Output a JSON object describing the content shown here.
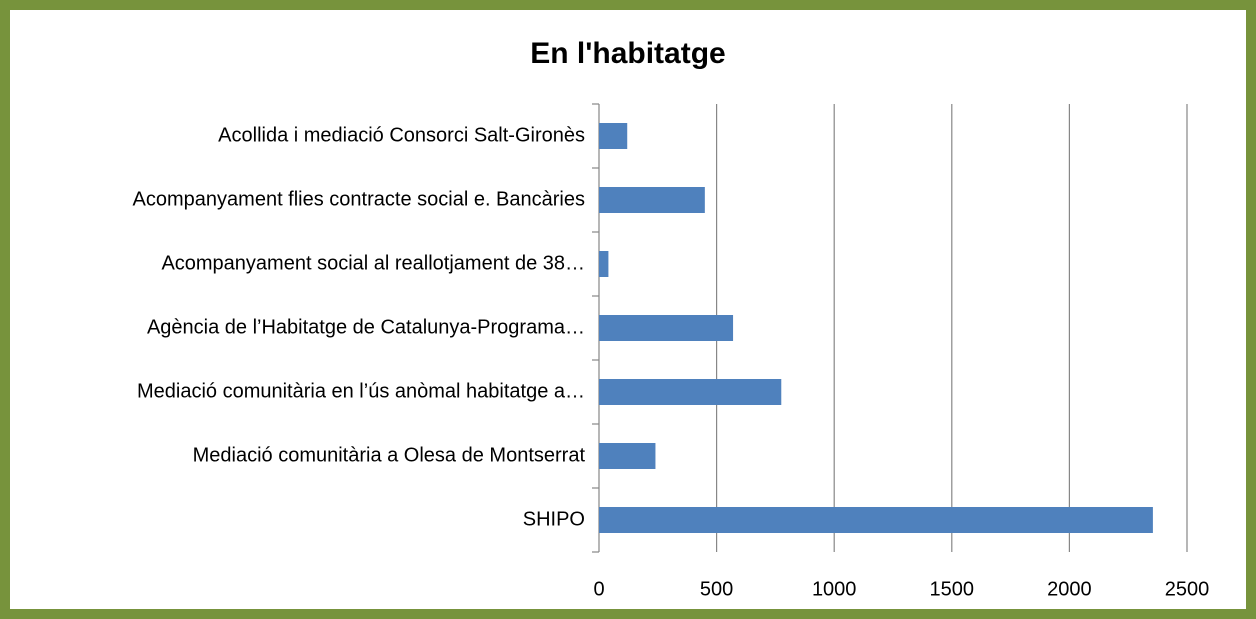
{
  "chart_data": {
    "type": "barh",
    "title": "En l'habitatge",
    "categories": [
      "Acollida i mediació Consorci Salt-Gironès",
      "Acompanyament flies contracte social e. Bancàries",
      "Acompanyament social al reallotjament de 38…",
      "Agència de l’Habitatge de Catalunya-Programa…",
      "Mediació comunitària  en l’ús anòmal habitatge a…",
      "Mediació comunitària a Olesa de Montserrat",
      "SHIPO"
    ],
    "values": [
      120,
      450,
      40,
      570,
      775,
      240,
      2355
    ],
    "color": "#4f81bd",
    "xlim": [
      0,
      2500
    ],
    "xticks": [
      0,
      500,
      1000,
      1500,
      2000,
      2500
    ],
    "grid": true
  }
}
